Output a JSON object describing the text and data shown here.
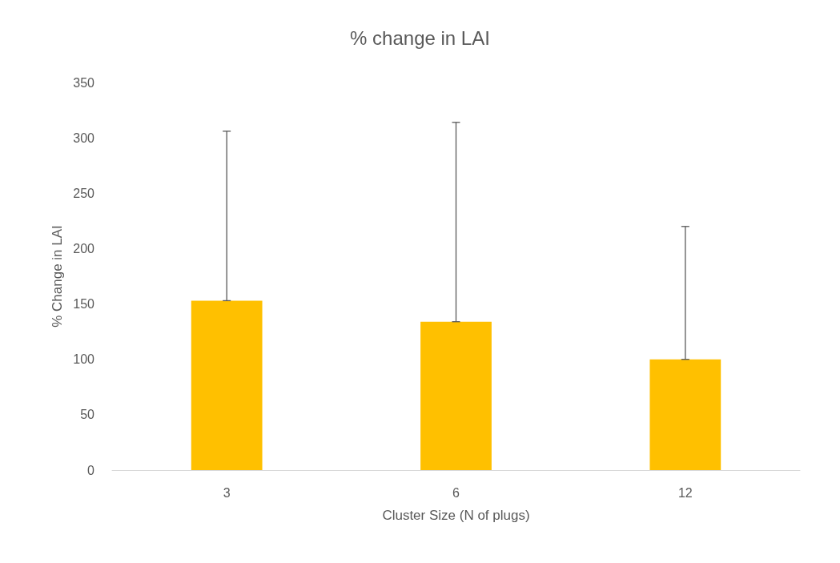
{
  "chart_data": {
    "type": "bar",
    "title": "% change in LAI",
    "xlabel": "Cluster Size (N of plugs)",
    "ylabel": "% Change in LAI",
    "categories": [
      "3",
      "6",
      "12"
    ],
    "values": [
      153,
      134,
      100
    ],
    "errors": [
      [
        153,
        306
      ],
      [
        134,
        314
      ],
      [
        100,
        220
      ]
    ],
    "color": "#ffc000",
    "ylim": [
      0,
      350
    ],
    "yticks": [
      0,
      50,
      100,
      150,
      200,
      250,
      300,
      350
    ]
  }
}
